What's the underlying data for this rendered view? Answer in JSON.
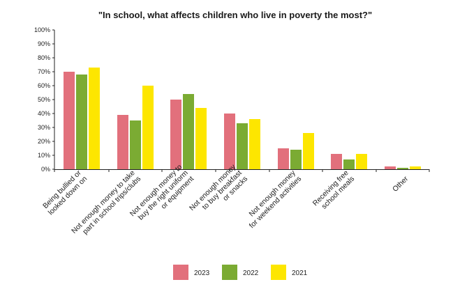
{
  "chart_data": {
    "type": "bar",
    "title": "\"In school, what affects children who live in poverty the most?\"",
    "xlabel": "",
    "ylabel": "",
    "ylim": [
      0,
      100
    ],
    "yticks": [
      "0%",
      "10%",
      "20%",
      "30%",
      "40%",
      "50%",
      "60%",
      "70%",
      "80%",
      "90%",
      "100%"
    ],
    "categories": [
      [
        "Being bullied or",
        "looked down on"
      ],
      [
        "Not enough money to take",
        "part in school trips/clubs"
      ],
      [
        "Not enough money to",
        "buy the right uniform",
        "or equipment"
      ],
      [
        "Not enough money",
        "to buy breakfast",
        "or snacks"
      ],
      [
        "Not enough money",
        "for weekend activities"
      ],
      [
        "Receiving free",
        "school meals"
      ],
      [
        "Other"
      ]
    ],
    "series": [
      {
        "name": "2023",
        "color": "#e2707c",
        "values": [
          70,
          39,
          50,
          40,
          15,
          11,
          2
        ]
      },
      {
        "name": "2022",
        "color": "#7bab33",
        "values": [
          68,
          35,
          54,
          33,
          14,
          7,
          1
        ]
      },
      {
        "name": "2021",
        "color": "#fde600",
        "values": [
          73,
          60,
          44,
          36,
          26,
          11,
          2
        ]
      }
    ],
    "legend": {
      "position": "bottom-center"
    },
    "grid": false
  }
}
